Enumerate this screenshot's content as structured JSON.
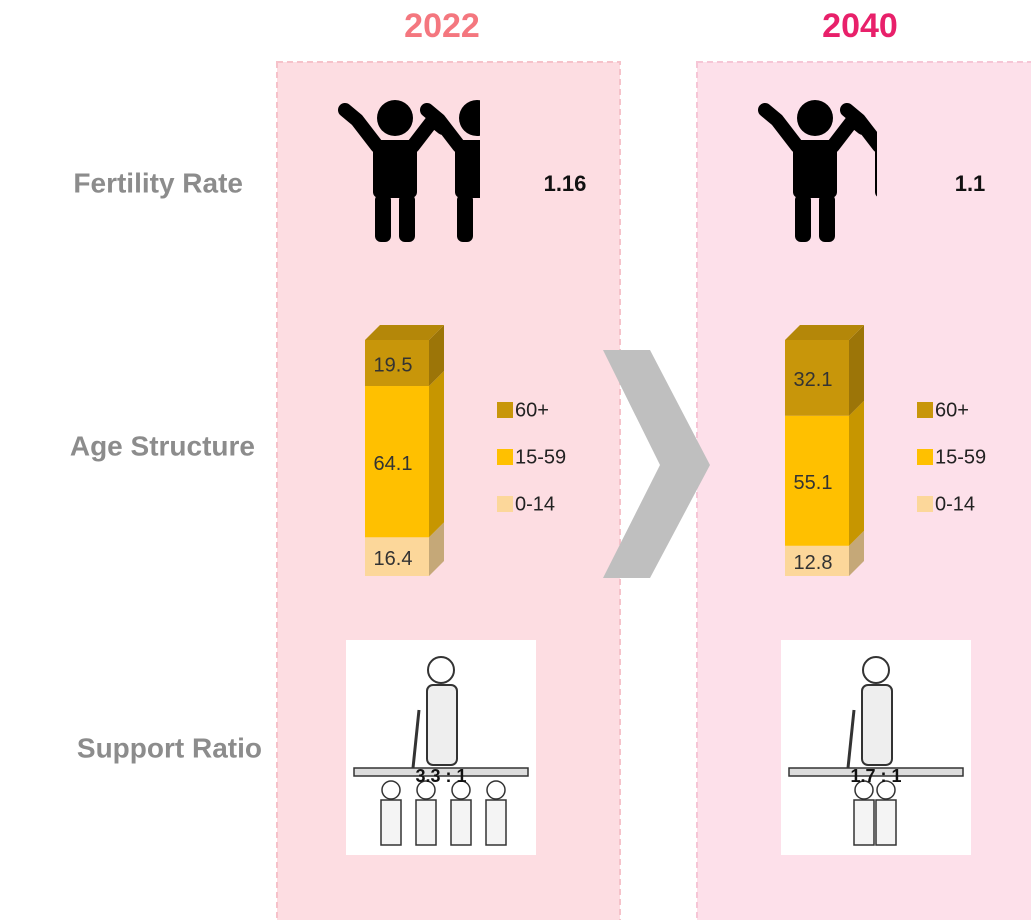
{
  "row_labels": [
    "Fertility Rate",
    "Age Structure",
    "Support Ratio"
  ],
  "panels": [
    {
      "year": "2022",
      "year_color": "#f4777f",
      "fertility_rate": 1.16,
      "age_structure": {
        "total": 100,
        "segments": [
          {
            "name": "60+",
            "value": 19.5,
            "color": "#c8960a"
          },
          {
            "name": "15-59",
            "value": 64.1,
            "color": "#ffc000"
          },
          {
            "name": "0-14",
            "value": 16.4,
            "color": "#fcd79a"
          }
        ]
      },
      "support_ratio": "3.3 : 1"
    },
    {
      "year": "2040",
      "year_color": "#e8206a",
      "fertility_rate": 1.1,
      "age_structure": {
        "total": 100,
        "segments": [
          {
            "name": "60+",
            "value": 32.1,
            "color": "#c8960a"
          },
          {
            "name": "15-59",
            "value": 55.1,
            "color": "#ffc000"
          },
          {
            "name": "0-14",
            "value": 12.8,
            "color": "#fcd79a"
          }
        ]
      },
      "support_ratio": "1.7 : 1"
    }
  ]
}
